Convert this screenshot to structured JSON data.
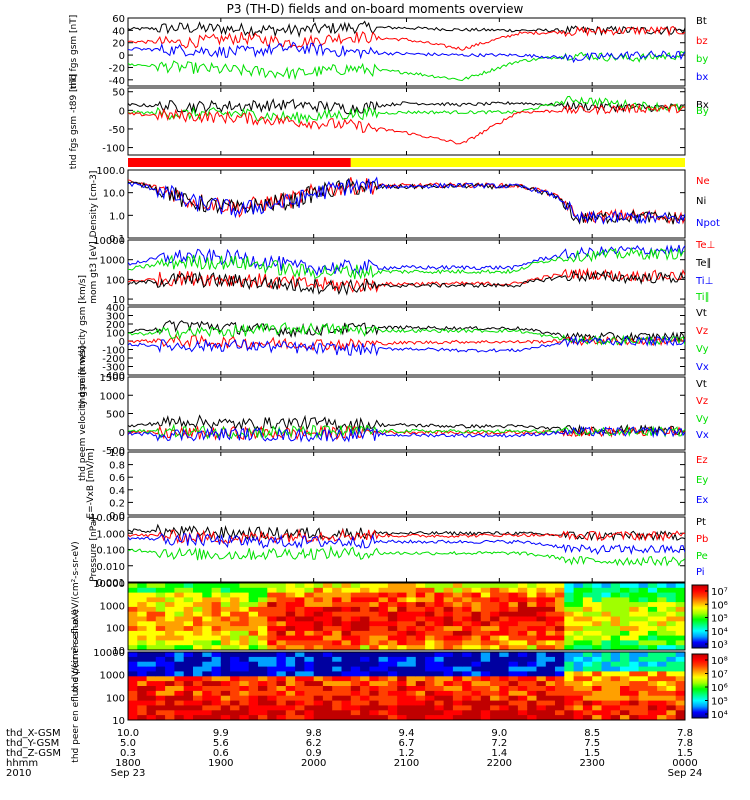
{
  "title": "P3 (TH-D) fields and on-board moments overview",
  "colors": {
    "black": "#000000",
    "red": "#ff0000",
    "green": "#00e000",
    "blue": "#0000ff",
    "yellow": "#ffff00"
  },
  "x_axis": {
    "rows": [
      {
        "label": "thd_X-GSM",
        "values": [
          "10.0",
          "9.9",
          "9.8",
          "9.4",
          "9.0",
          "8.5",
          "7.8"
        ]
      },
      {
        "label": "thd_Y-GSM",
        "values": [
          "5.0",
          "5.6",
          "6.2",
          "6.7",
          "7.2",
          "7.5",
          "7.8"
        ]
      },
      {
        "label": "thd_Z-GSM",
        "values": [
          "0.3",
          "0.6",
          "0.9",
          "1.2",
          "1.4",
          "1.5",
          "1.5"
        ]
      },
      {
        "label": "hhmm",
        "values": [
          "1800",
          "1900",
          "2000",
          "2100",
          "2200",
          "2300",
          "0000"
        ]
      },
      {
        "label": "2010",
        "values": [
          "Sep 23",
          "",
          "",
          "",
          "",
          "",
          "Sep 24"
        ]
      }
    ]
  },
  "status_bar": {
    "red_fraction": 0.4,
    "colors": [
      "red",
      "yellow"
    ]
  },
  "chart_data": [
    {
      "type": "line",
      "ylabel": "thd fgs gsm [nT]",
      "ylim": [
        -50,
        60
      ],
      "yticks": [
        "60",
        "40",
        "20",
        "0",
        "-20",
        "-40"
      ],
      "series": [
        {
          "name": "Bt",
          "color": "black",
          "level": [
            42,
            44,
            42,
            40,
            45,
            44,
            41,
            40,
            40,
            40,
            40
          ]
        },
        {
          "name": "bz",
          "color": "red",
          "level": [
            22,
            20,
            28,
            20,
            30,
            25,
            10,
            35,
            38,
            40,
            39
          ]
        },
        {
          "name": "by",
          "color": "green",
          "level": [
            -15,
            -20,
            -25,
            -30,
            -22,
            -28,
            -40,
            -10,
            0,
            -5,
            0
          ]
        },
        {
          "name": "bx",
          "color": "blue",
          "level": [
            10,
            8,
            5,
            12,
            5,
            2,
            0,
            0,
            -5,
            0,
            0
          ]
        }
      ]
    },
    {
      "type": "line",
      "ylabel": "thd fgs gsm -t89 [nT]",
      "ylim": [
        -120,
        60
      ],
      "yticks": [
        "50",
        "0",
        "-50",
        "-100"
      ],
      "series": [
        {
          "name": "Bx",
          "color": "black",
          "level": [
            15,
            10,
            12,
            15,
            5,
            20,
            15,
            20,
            12,
            8,
            8
          ]
        },
        {
          "name": "By",
          "color": "green",
          "level": [
            -5,
            -10,
            -8,
            -20,
            -10,
            -5,
            -5,
            -5,
            30,
            15,
            5
          ]
        },
        {
          "name": "Bz",
          "color": "red",
          "level": [
            -10,
            -15,
            -20,
            -30,
            -40,
            -60,
            -90,
            -5,
            0,
            5,
            5
          ]
        }
      ]
    },
    {
      "type": "line",
      "ylabel": "Density [cm-3]",
      "ylim": [
        0.1,
        100
      ],
      "yscale": "log",
      "yticks": [
        "100.0",
        "10.0",
        "1.0",
        "0.1"
      ],
      "series": [
        {
          "name": "Ne",
          "color": "red",
          "level": [
            30,
            5,
            2,
            5,
            20,
            20,
            22,
            20,
            0.8,
            1,
            0.8
          ]
        },
        {
          "name": "Ni",
          "color": "black",
          "level": [
            28,
            4,
            1.8,
            4.5,
            18,
            18,
            20,
            18,
            0.7,
            0.9,
            0.7
          ]
        },
        {
          "name": "Npot",
          "color": "blue",
          "level": [
            25,
            4,
            1.6,
            4,
            19,
            19,
            21,
            19,
            0.7,
            0.8,
            0.7
          ]
        }
      ]
    },
    {
      "type": "line",
      "ylabel": "mom gt3 [eV]",
      "ylim": [
        5,
        10000
      ],
      "yscale": "log",
      "yticks": [
        "10000",
        "1000",
        "100",
        "10"
      ],
      "series": [
        {
          "name": "Te⊥",
          "color": "red",
          "level": [
            80,
            120,
            100,
            60,
            50,
            60,
            60,
            60,
            200,
            150,
            150
          ]
        },
        {
          "name": "Te∥",
          "color": "black",
          "level": [
            60,
            100,
            80,
            50,
            40,
            50,
            50,
            50,
            150,
            120,
            120
          ]
        },
        {
          "name": "Ti⊥",
          "color": "blue",
          "level": [
            600,
            1500,
            1200,
            400,
            400,
            400,
            400,
            400,
            2000,
            3000,
            3000
          ]
        },
        {
          "name": "Ti∥",
          "color": "green",
          "level": [
            300,
            800,
            700,
            250,
            250,
            250,
            250,
            250,
            1500,
            2000,
            2000
          ]
        }
      ]
    },
    {
      "type": "line",
      "ylabel": "thd peim velocity gsm [km/s]",
      "ylim": [
        -400,
        400
      ],
      "yticks": [
        "400",
        "300",
        "200",
        "100",
        "0",
        "-100",
        "-200",
        "-300",
        "-400"
      ],
      "series": [
        {
          "name": "Vt",
          "color": "black",
          "level": [
            100,
            200,
            150,
            120,
            150,
            160,
            150,
            150,
            50,
            50,
            50
          ]
        },
        {
          "name": "Vz",
          "color": "red",
          "level": [
            0,
            0,
            -20,
            -30,
            -40,
            -20,
            -10,
            -10,
            0,
            0,
            0
          ]
        },
        {
          "name": "Vy",
          "color": "green",
          "level": [
            80,
            100,
            120,
            150,
            130,
            120,
            120,
            120,
            0,
            10,
            0
          ]
        },
        {
          "name": "Vx",
          "color": "blue",
          "level": [
            -40,
            -60,
            -50,
            -80,
            -100,
            -90,
            -110,
            -110,
            0,
            0,
            0
          ]
        }
      ]
    },
    {
      "type": "line",
      "ylabel": "thd peem velocity gsm [km/s]",
      "ylim": [
        -500,
        1500
      ],
      "yticks": [
        "1500",
        "1000",
        "500",
        "0",
        "-500"
      ],
      "series": [
        {
          "name": "Vt",
          "color": "black",
          "level": [
            150,
            300,
            200,
            250,
            200,
            180,
            150,
            150,
            50,
            50,
            50
          ]
        },
        {
          "name": "Vz",
          "color": "red",
          "level": [
            0,
            -50,
            -30,
            -40,
            -20,
            -10,
            -20,
            -20,
            0,
            0,
            0
          ]
        },
        {
          "name": "Vy",
          "color": "green",
          "level": [
            20,
            0,
            -10,
            0,
            10,
            20,
            10,
            10,
            0,
            0,
            0
          ]
        },
        {
          "name": "Vx",
          "color": "blue",
          "level": [
            -50,
            -80,
            -60,
            -100,
            -80,
            -90,
            -100,
            -100,
            0,
            0,
            0
          ]
        }
      ]
    },
    {
      "type": "line",
      "ylabel": "E=-VxB [mV/m]",
      "ylim": [
        0,
        1
      ],
      "yticks": [
        "1.0",
        "0.8",
        "0.6",
        "0.4",
        "0.2",
        "0.0"
      ],
      "series": [
        {
          "name": "Ez",
          "color": "red",
          "level": []
        },
        {
          "name": "Ey",
          "color": "green",
          "level": []
        },
        {
          "name": "Ex",
          "color": "blue",
          "level": []
        }
      ]
    },
    {
      "type": "line",
      "ylabel": "Pressure [nPa]",
      "ylim": [
        0.001,
        10
      ],
      "yscale": "log",
      "yticks": [
        "10.000",
        "1.000",
        "0.100",
        "0.010",
        "0.001"
      ],
      "series": [
        {
          "name": "Pt",
          "color": "black",
          "level": [
            1.5,
            1.2,
            1.0,
            1.0,
            1.0,
            1.0,
            1.0,
            1.0,
            0.7,
            0.7,
            0.7
          ]
        },
        {
          "name": "Pb",
          "color": "red",
          "level": [
            0.8,
            0.6,
            0.5,
            0.7,
            0.8,
            0.7,
            0.7,
            0.8,
            0.7,
            0.7,
            0.7
          ]
        },
        {
          "name": "Pe",
          "color": "green",
          "level": [
            0.1,
            0.05,
            0.05,
            0.06,
            0.06,
            0.06,
            0.06,
            0.06,
            0.02,
            0.02,
            0.02
          ]
        },
        {
          "name": "Pi",
          "color": "blue",
          "level": [
            0.5,
            0.4,
            0.3,
            0.3,
            0.3,
            0.3,
            0.3,
            0.3,
            0.1,
            0.1,
            0.1
          ]
        }
      ]
    },
    {
      "type": "heatmap",
      "ylabel": "thd peir en eflux eV/(cm²-s-sr-eV)",
      "ylim": [
        10,
        10000
      ],
      "yscale": "log",
      "yticks": [
        "10000",
        "1000",
        "100",
        "10"
      ],
      "colorbar": {
        "ticks": [
          "10⁷",
          "10⁶",
          "10⁵",
          "10⁴",
          "10³"
        ]
      }
    },
    {
      "type": "heatmap",
      "ylabel": "thd peer en eflux eV/(cm²-s-sr-eV)",
      "ylim": [
        10,
        10000
      ],
      "yscale": "log",
      "yticks": [
        "10000",
        "1000",
        "100",
        "10"
      ],
      "colorbar": {
        "ticks": [
          "10⁸",
          "10⁷",
          "10⁶",
          "10⁵",
          "10⁴"
        ]
      }
    }
  ]
}
